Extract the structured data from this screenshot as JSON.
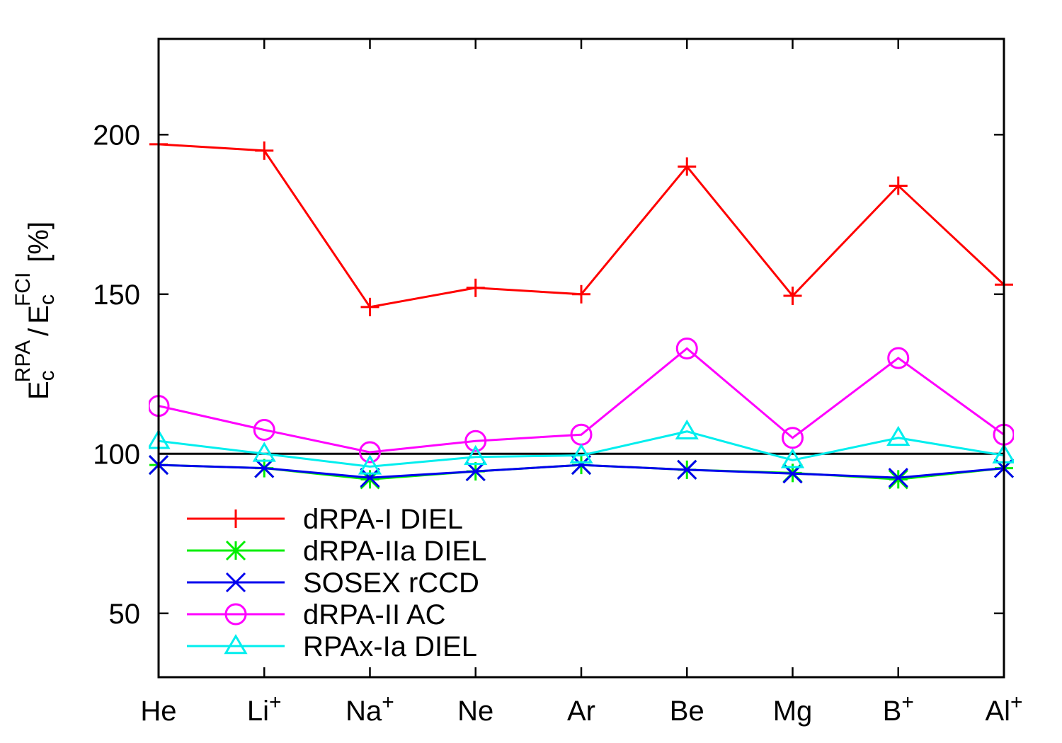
{
  "chart_data": {
    "type": "line",
    "title": "",
    "xlabel": "",
    "ylabel": {
      "numerator_base": "E",
      "numerator_sub": "c",
      "numerator_sup": "RPA",
      "slash": "/",
      "denominator_base": "E",
      "denominator_sub": "c",
      "denominator_sup": "FCI",
      "unit": "[%]"
    },
    "categories": [
      {
        "base": "He",
        "sup": ""
      },
      {
        "base": "Li",
        "sup": "+"
      },
      {
        "base": "Na",
        "sup": "+"
      },
      {
        "base": "Ne",
        "sup": ""
      },
      {
        "base": "Ar",
        "sup": ""
      },
      {
        "base": "Be",
        "sup": ""
      },
      {
        "base": "Mg",
        "sup": ""
      },
      {
        "base": "B",
        "sup": "+"
      },
      {
        "base": "Al",
        "sup": "+"
      }
    ],
    "ylim": [
      30,
      230
    ],
    "yticks": [
      50,
      100,
      150,
      200
    ],
    "reference_line": 100,
    "legend_position": "bottom-left",
    "grid": false,
    "series": [
      {
        "name": "dRPA-I DIEL",
        "color": "#ff0000",
        "marker": "plus",
        "values": [
          197,
          195,
          146,
          152,
          150,
          190,
          149.5,
          184,
          153
        ]
      },
      {
        "name": "dRPA-IIa DIEL",
        "color": "#00ee00",
        "marker": "star",
        "values": [
          96.5,
          95.5,
          92,
          94.5,
          96.5,
          95,
          94,
          92,
          95.5
        ]
      },
      {
        "name": "SOSEX rCCD",
        "color": "#0000ee",
        "marker": "cross",
        "values": [
          96.5,
          95.5,
          92.5,
          94.5,
          96.5,
          95,
          93.8,
          92.5,
          95.5
        ]
      },
      {
        "name": "dRPA-II AC",
        "color": "#ff00ff",
        "marker": "circle",
        "values": [
          115,
          107.5,
          100.5,
          104,
          106,
          133,
          105,
          130,
          106
        ]
      },
      {
        "name": "RPAx-Ia DIEL",
        "color": "#00eeee",
        "marker": "triangle",
        "values": [
          104,
          100,
          96,
          99,
          99.5,
          107,
          98,
          105,
          99.5
        ]
      }
    ]
  }
}
